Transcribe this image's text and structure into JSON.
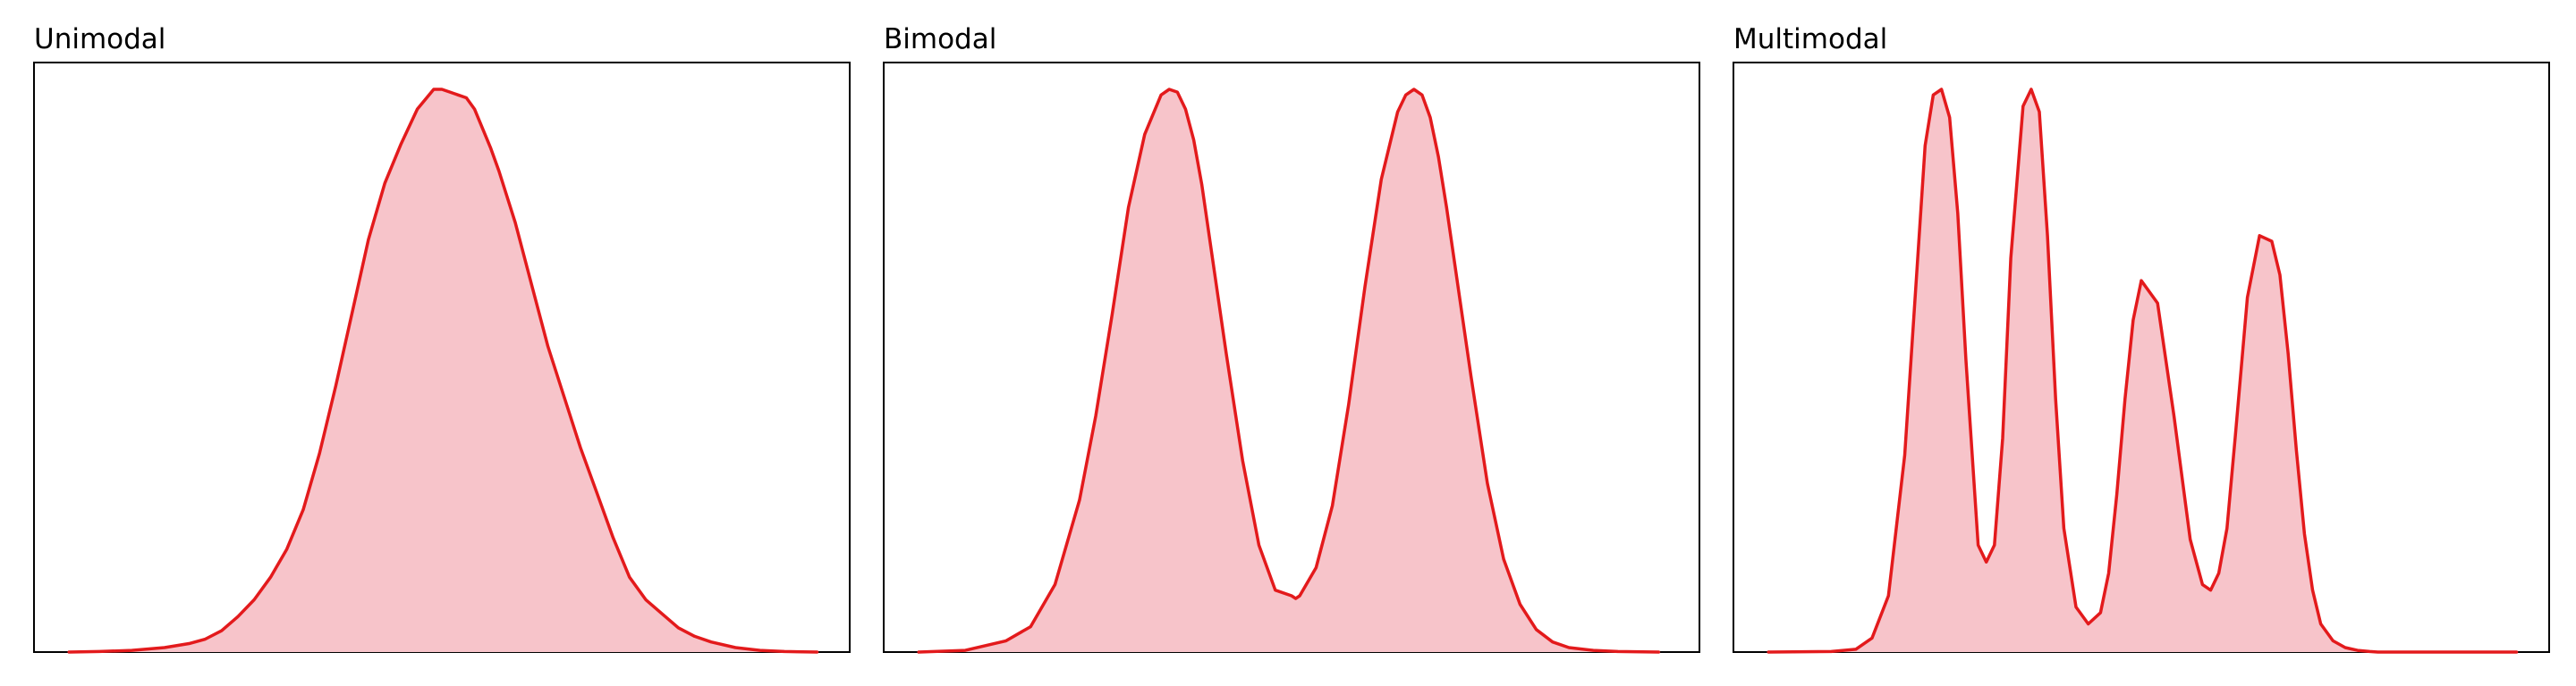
{
  "figure": {
    "background": "#ffffff"
  },
  "chart_data": [
    {
      "type": "area",
      "title": "Unimodal",
      "xlabel": "",
      "ylabel": "",
      "xlim": [
        0,
        1
      ],
      "ylim": [
        0,
        1
      ],
      "grid": false,
      "axes_ticks": false,
      "line_color": "#e31a1c",
      "fill_color": "#f7c4ca",
      "series": [
        {
          "x": [
            0.043,
            0.08,
            0.12,
            0.16,
            0.19,
            0.21,
            0.23,
            0.25,
            0.27,
            0.29,
            0.31,
            0.33,
            0.35,
            0.37,
            0.39,
            0.41,
            0.43,
            0.45,
            0.47,
            0.49,
            0.5,
            0.51,
            0.52,
            0.53,
            0.54,
            0.55,
            0.56,
            0.57,
            0.59,
            0.61,
            0.63,
            0.65,
            0.67,
            0.69,
            0.71,
            0.73,
            0.75,
            0.77,
            0.79,
            0.81,
            0.83,
            0.86,
            0.89,
            0.92,
            0.96
          ],
          "y": [
            0.0,
            0.001,
            0.003,
            0.008,
            0.015,
            0.023,
            0.038,
            0.063,
            0.093,
            0.133,
            0.183,
            0.253,
            0.353,
            0.473,
            0.603,
            0.733,
            0.833,
            0.903,
            0.965,
            1.0,
            1.0,
            0.995,
            0.99,
            0.985,
            0.965,
            0.93,
            0.895,
            0.855,
            0.763,
            0.653,
            0.543,
            0.453,
            0.363,
            0.283,
            0.203,
            0.133,
            0.093,
            0.068,
            0.043,
            0.028,
            0.018,
            0.008,
            0.003,
            0.001,
            0.0
          ]
        }
      ]
    },
    {
      "type": "area",
      "title": "Bimodal",
      "xlabel": "",
      "ylabel": "",
      "xlim": [
        0,
        1
      ],
      "ylim": [
        0,
        1
      ],
      "grid": false,
      "axes_ticks": false,
      "line_color": "#e31a1c",
      "fill_color": "#f7c4ca",
      "series": [
        {
          "x": [
            0.043,
            0.1,
            0.15,
            0.18,
            0.21,
            0.24,
            0.26,
            0.28,
            0.3,
            0.32,
            0.34,
            0.35,
            0.36,
            0.37,
            0.38,
            0.39,
            0.4,
            0.41,
            0.42,
            0.44,
            0.46,
            0.48,
            0.5,
            0.505,
            0.51,
            0.53,
            0.55,
            0.57,
            0.59,
            0.61,
            0.63,
            0.64,
            0.65,
            0.66,
            0.67,
            0.68,
            0.69,
            0.7,
            0.72,
            0.74,
            0.76,
            0.78,
            0.8,
            0.82,
            0.84,
            0.87,
            0.9,
            0.95
          ],
          "y": [
            0.0,
            0.003,
            0.02,
            0.045,
            0.12,
            0.27,
            0.42,
            0.6,
            0.79,
            0.92,
            0.99,
            1.0,
            0.995,
            0.965,
            0.91,
            0.83,
            0.73,
            0.63,
            0.53,
            0.34,
            0.19,
            0.11,
            0.1,
            0.095,
            0.1,
            0.15,
            0.26,
            0.44,
            0.65,
            0.84,
            0.96,
            0.99,
            1.0,
            0.99,
            0.95,
            0.88,
            0.79,
            0.69,
            0.49,
            0.3,
            0.165,
            0.085,
            0.04,
            0.018,
            0.008,
            0.003,
            0.001,
            0.0
          ]
        }
      ]
    },
    {
      "type": "area",
      "title": "Multimodal",
      "xlabel": "",
      "ylabel": "",
      "xlim": [
        0,
        1
      ],
      "ylim": [
        0,
        1
      ],
      "grid": false,
      "axes_ticks": false,
      "line_color": "#e31a1c",
      "fill_color": "#f7c4ca",
      "series": [
        {
          "x": [
            0.043,
            0.12,
            0.15,
            0.17,
            0.19,
            0.21,
            0.225,
            0.235,
            0.245,
            0.255,
            0.265,
            0.275,
            0.285,
            0.3,
            0.31,
            0.32,
            0.33,
            0.34,
            0.355,
            0.365,
            0.375,
            0.385,
            0.395,
            0.405,
            0.42,
            0.435,
            0.45,
            0.46,
            0.47,
            0.48,
            0.49,
            0.5,
            0.52,
            0.54,
            0.56,
            0.575,
            0.585,
            0.595,
            0.605,
            0.615,
            0.63,
            0.645,
            0.66,
            0.67,
            0.68,
            0.69,
            0.7,
            0.71,
            0.72,
            0.735,
            0.75,
            0.765,
            0.78,
            0.79,
            0.8,
            0.81,
            0.825,
            0.84,
            0.86,
            0.88,
            0.91,
            0.96
          ],
          "y": [
            0.0,
            0.001,
            0.005,
            0.025,
            0.1,
            0.35,
            0.68,
            0.9,
            0.99,
            1.0,
            0.95,
            0.78,
            0.52,
            0.19,
            0.16,
            0.19,
            0.38,
            0.7,
            0.97,
            1.0,
            0.96,
            0.74,
            0.45,
            0.22,
            0.08,
            0.05,
            0.07,
            0.14,
            0.28,
            0.45,
            0.59,
            0.66,
            0.62,
            0.42,
            0.2,
            0.12,
            0.11,
            0.14,
            0.22,
            0.38,
            0.63,
            0.74,
            0.73,
            0.67,
            0.53,
            0.36,
            0.21,
            0.11,
            0.05,
            0.02,
            0.008,
            0.003,
            0.001,
            0.0,
            0.0,
            0.0,
            0.0,
            0.0,
            0.0,
            0.0,
            0.0,
            0.0
          ]
        }
      ]
    }
  ]
}
